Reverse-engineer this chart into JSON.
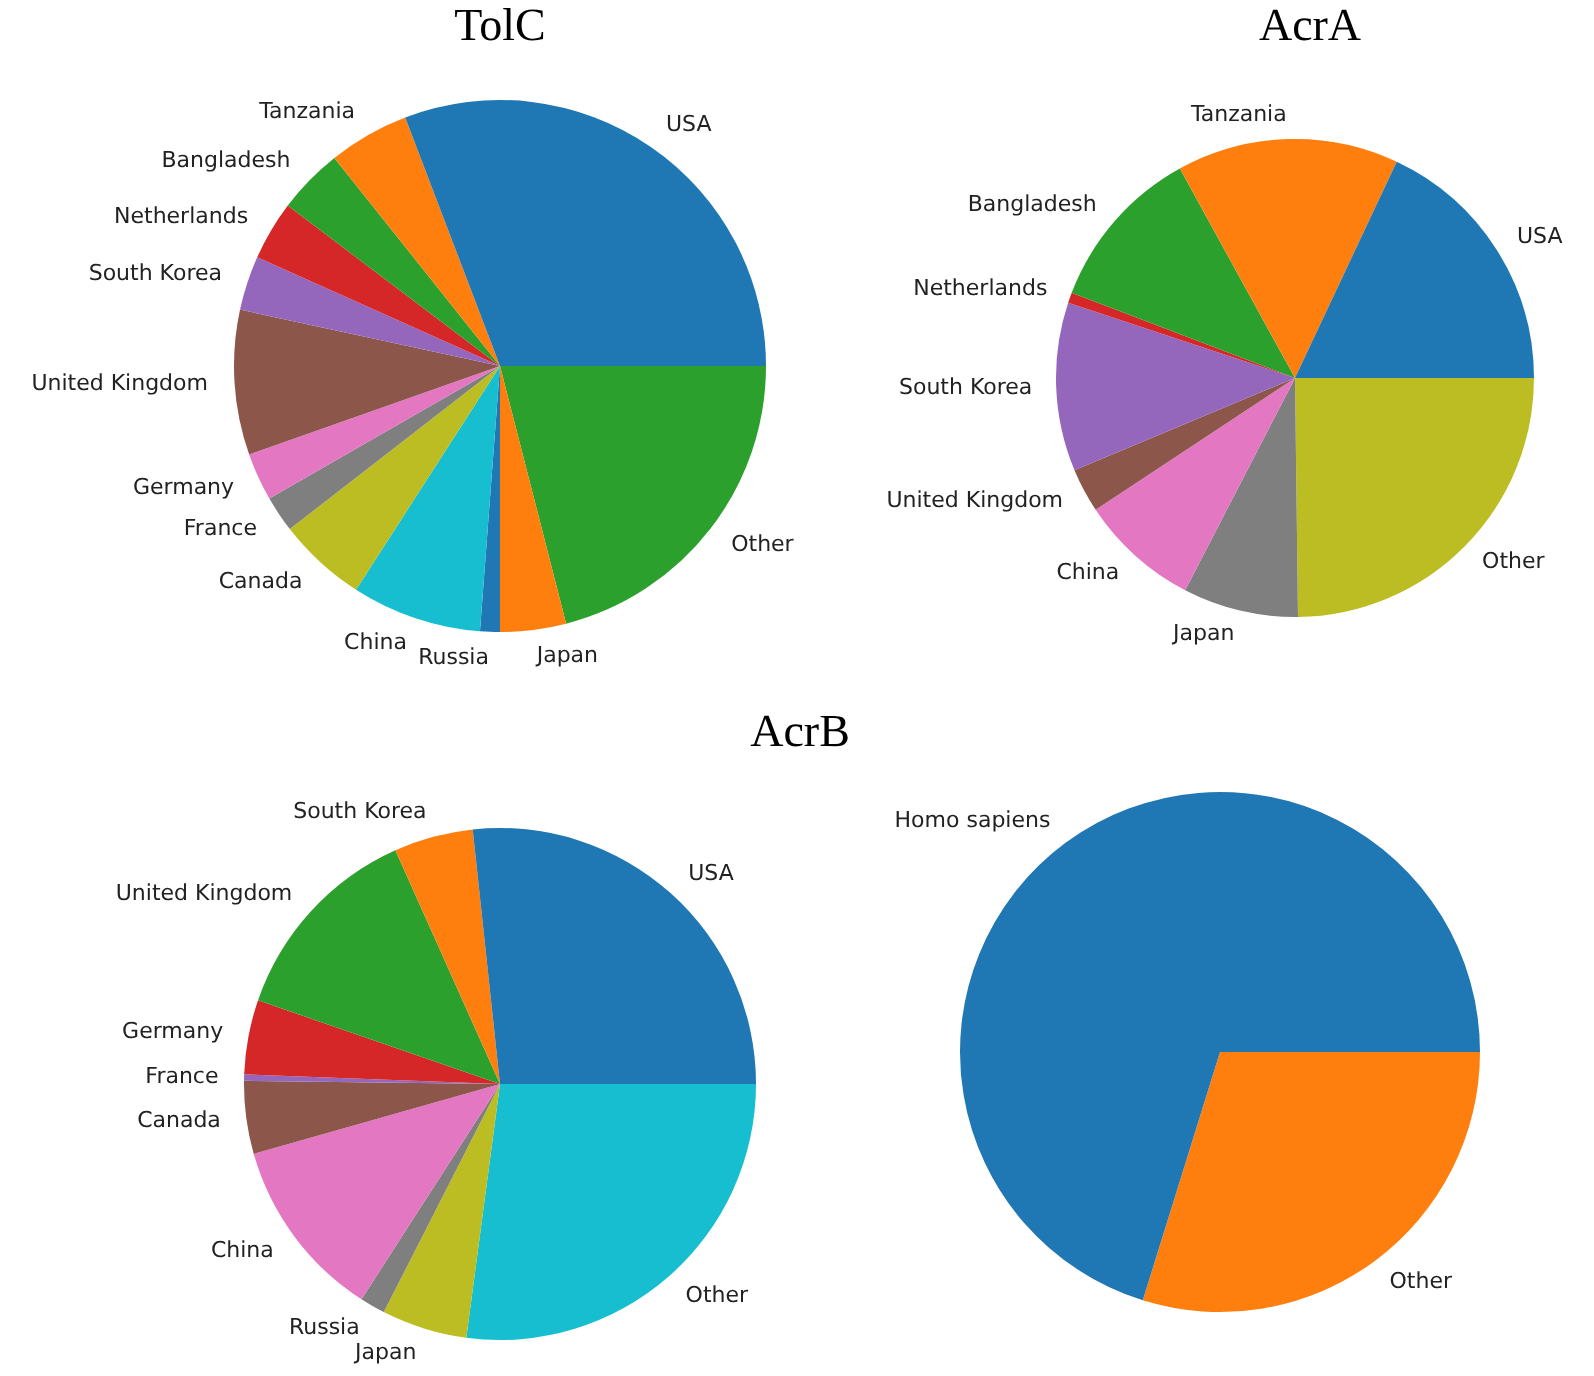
{
  "chart_data": [
    {
      "type": "pie",
      "title": "TolC",
      "categories": [
        "USA",
        "Tanzania",
        "Bangladesh",
        "Netherlands",
        "South Korea",
        "United Kingdom",
        "Germany",
        "France",
        "Canada",
        "China",
        "Russia",
        "Japan",
        "Other"
      ],
      "values": [
        30.8,
        4.9,
        4,
        3.6,
        3.3,
        8.8,
        2.9,
        2.2,
        5.4,
        7.9,
        1.2,
        4,
        21
      ],
      "colors": [
        "#1f77b4",
        "#ff7f0e",
        "#2ca02c",
        "#d62728",
        "#9467bd",
        "#8c564b",
        "#e377c2",
        "#7f7f7f",
        "#bcbd22",
        "#17becf",
        "#1f77b4",
        "#ff7f0e",
        "#2ca02c"
      ],
      "legend": false
    },
    {
      "type": "pie",
      "title": "AcrA",
      "categories": [
        "USA",
        "Tanzania",
        "Bangladesh",
        "Netherlands",
        "South Korea",
        "United Kingdom",
        "China",
        "Japan",
        "Other"
      ],
      "values": [
        18,
        15,
        11.2,
        0.7,
        11.4,
        3,
        8.1,
        7.8,
        24.8
      ],
      "colors": [
        "#1f77b4",
        "#ff7f0e",
        "#2ca02c",
        "#d62728",
        "#9467bd",
        "#8c564b",
        "#e377c2",
        "#7f7f7f",
        "#bcbd22"
      ],
      "legend": false
    },
    {
      "type": "pie",
      "title": "AcrB",
      "categories": [
        "USA",
        "South Korea",
        "United Kingdom",
        "Germany",
        "France",
        "Canada",
        "China",
        "Russia",
        "Japan",
        "Other"
      ],
      "values": [
        26.7,
        5,
        13,
        4.7,
        0.4,
        4.6,
        11.5,
        1.6,
        5.4,
        27.1
      ],
      "colors": [
        "#1f77b4",
        "#ff7f0e",
        "#2ca02c",
        "#d62728",
        "#9467bd",
        "#8c564b",
        "#e377c2",
        "#7f7f7f",
        "#bcbd22",
        "#17becf"
      ],
      "legend": false
    },
    {
      "type": "pie",
      "categories": [
        "Homo sapiens",
        "Other"
      ],
      "values": [
        70.2,
        29.8
      ],
      "colors": [
        "#1f77b4",
        "#ff7f0e"
      ],
      "legend": false
    }
  ]
}
